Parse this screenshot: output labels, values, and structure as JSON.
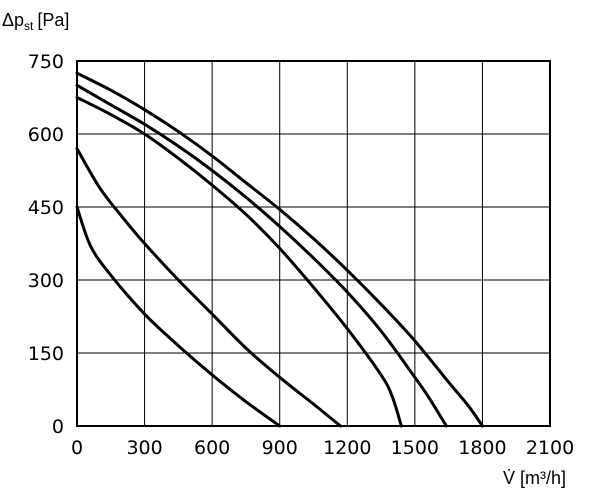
{
  "chart_data": {
    "type": "line",
    "title": "",
    "ylabel": {
      "main": "Δp",
      "sub": "st",
      "unit": "[Pa]"
    },
    "xlabel": {
      "main": "V̇",
      "unit": "[m³/h]"
    },
    "xlim": [
      0,
      2100
    ],
    "ylim": [
      0,
      750
    ],
    "x_ticks": [
      0,
      300,
      600,
      900,
      1200,
      1500,
      1800,
      2100
    ],
    "y_ticks": [
      0,
      150,
      300,
      450,
      600,
      750
    ],
    "x_tick_labels": [
      "0",
      "300",
      "600",
      "900",
      "1200",
      "1500",
      "1800",
      "2100"
    ],
    "y_tick_labels": [
      "0",
      "150",
      "300",
      "450",
      "600",
      "750"
    ],
    "grid": true,
    "legend": "none",
    "series": [
      {
        "x": [
          0,
          60,
          150,
          300,
          450,
          600,
          750,
          900
        ],
        "y": [
          450,
          370,
          310,
          230,
          165,
          105,
          50,
          0
        ]
      },
      {
        "x": [
          0,
          100,
          200,
          300,
          450,
          600,
          750,
          900,
          1050,
          1170
        ],
        "y": [
          570,
          490,
          430,
          375,
          300,
          230,
          160,
          100,
          45,
          0
        ]
      },
      {
        "x": [
          0,
          150,
          300,
          450,
          600,
          750,
          900,
          1050,
          1200,
          1350,
          1400,
          1440
        ],
        "y": [
          675,
          640,
          600,
          550,
          495,
          435,
          365,
          285,
          200,
          105,
          60,
          0
        ]
      },
      {
        "x": [
          0,
          150,
          300,
          450,
          600,
          750,
          900,
          1050,
          1200,
          1350,
          1500,
          1560,
          1640
        ],
        "y": [
          700,
          660,
          620,
          575,
          525,
          470,
          410,
          345,
          275,
          195,
          100,
          60,
          0
        ]
      },
      {
        "x": [
          0,
          150,
          300,
          450,
          600,
          750,
          900,
          1050,
          1200,
          1350,
          1500,
          1650,
          1740,
          1800
        ],
        "y": [
          725,
          690,
          650,
          605,
          555,
          500,
          445,
          385,
          320,
          250,
          175,
          90,
          40,
          0
        ]
      }
    ]
  }
}
